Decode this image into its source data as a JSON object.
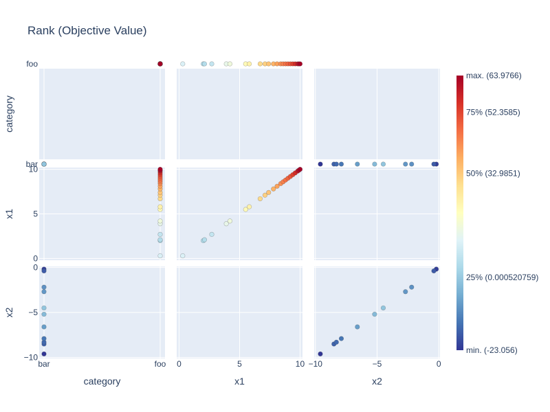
{
  "chart_data": {
    "type": "scatter",
    "title": "Rank (Objective Value)",
    "variables": [
      "category",
      "x1",
      "x2"
    ],
    "axes": {
      "category": {
        "label": "category",
        "categorical": true,
        "categories": [
          "bar",
          "foo"
        ],
        "ticks": [
          "bar",
          "foo"
        ]
      },
      "x1": {
        "label": "x1",
        "range": [
          -0.2,
          10.2
        ],
        "ticks": [
          0,
          5,
          10
        ]
      },
      "x2": {
        "label": "x2",
        "range": [
          -10.1,
          0.1
        ],
        "ticks": [
          -10,
          -5,
          0
        ]
      }
    },
    "points": [
      {
        "category": "bar",
        "x1": null,
        "x2": -9.6,
        "value": -23.0
      },
      {
        "category": "bar",
        "x1": null,
        "x2": -8.5,
        "value": -17.0
      },
      {
        "category": "bar",
        "x1": null,
        "x2": -8.3,
        "value": -16.0
      },
      {
        "category": "bar",
        "x1": null,
        "x2": -7.9,
        "value": -14.0
      },
      {
        "category": "bar",
        "x1": null,
        "x2": -6.6,
        "value": -8.0
      },
      {
        "category": "bar",
        "x1": null,
        "x2": -5.2,
        "value": -3.0
      },
      {
        "category": "bar",
        "x1": null,
        "x2": -4.5,
        "value": -1.0
      },
      {
        "category": "bar",
        "x1": null,
        "x2": -2.7,
        "value": -9.0
      },
      {
        "category": "bar",
        "x1": null,
        "x2": -2.2,
        "value": -10.0
      },
      {
        "category": "bar",
        "x1": null,
        "x2": -0.4,
        "value": -18.0
      },
      {
        "category": "bar",
        "x1": null,
        "x2": -0.2,
        "value": -22.0
      },
      {
        "category": "foo",
        "x1": 0.3,
        "x2": null,
        "value": 11.0
      },
      {
        "category": "foo",
        "x1": 2.0,
        "x2": null,
        "value": 4.0
      },
      {
        "category": "foo",
        "x1": 2.1,
        "x2": null,
        "value": 4.5
      },
      {
        "category": "foo",
        "x1": 2.7,
        "x2": null,
        "value": 7.0
      },
      {
        "category": "foo",
        "x1": 3.9,
        "x2": null,
        "value": 14.0
      },
      {
        "category": "foo",
        "x1": 4.2,
        "x2": null,
        "value": 16.0
      },
      {
        "category": "foo",
        "x1": 5.5,
        "x2": null,
        "value": 22.0
      },
      {
        "category": "foo",
        "x1": 5.8,
        "x2": null,
        "value": 24.0
      },
      {
        "category": "foo",
        "x1": 6.7,
        "x2": null,
        "value": 30.0
      },
      {
        "category": "foo",
        "x1": 7.1,
        "x2": null,
        "value": 32.0
      },
      {
        "category": "foo",
        "x1": 7.4,
        "x2": null,
        "value": 34.0
      },
      {
        "category": "foo",
        "x1": 7.8,
        "x2": null,
        "value": 37.0
      },
      {
        "category": "foo",
        "x1": 8.1,
        "x2": null,
        "value": 39.5
      },
      {
        "category": "foo",
        "x1": 8.4,
        "x2": null,
        "value": 42.0
      },
      {
        "category": "foo",
        "x1": 8.6,
        "x2": null,
        "value": 44.0
      },
      {
        "category": "foo",
        "x1": 8.8,
        "x2": null,
        "value": 46.0
      },
      {
        "category": "foo",
        "x1": 9.0,
        "x2": null,
        "value": 48.0
      },
      {
        "category": "foo",
        "x1": 9.2,
        "x2": null,
        "value": 50.0
      },
      {
        "category": "foo",
        "x1": 9.4,
        "x2": null,
        "value": 53.0
      },
      {
        "category": "foo",
        "x1": 9.6,
        "x2": null,
        "value": 56.0
      },
      {
        "category": "foo",
        "x1": 9.8,
        "x2": null,
        "value": 59.0
      },
      {
        "category": "foo",
        "x1": 9.9,
        "x2": null,
        "value": 61.5
      },
      {
        "category": "foo",
        "x1": 10.0,
        "x2": null,
        "value": 63.9
      }
    ],
    "colorbar": {
      "min": -23.056,
      "max": 63.9766,
      "colorscale": [
        "#313695",
        "#4575b4",
        "#74add1",
        "#abd9e9",
        "#e0f3f8",
        "#ffffbf",
        "#fee090",
        "#fdae61",
        "#f46d43",
        "#d73027",
        "#a50026"
      ],
      "tick_labels": [
        {
          "label": "min. (-23.056)",
          "value": -23.056
        },
        {
          "label": "25% (0.000520759)",
          "value": 0.000520759
        },
        {
          "label": "50% (32.9851)",
          "value": 32.9851
        },
        {
          "label": "75% (52.3585)",
          "value": 52.3585
        },
        {
          "label": "max. (63.9766)",
          "value": 63.9766
        }
      ]
    },
    "grid": true
  }
}
